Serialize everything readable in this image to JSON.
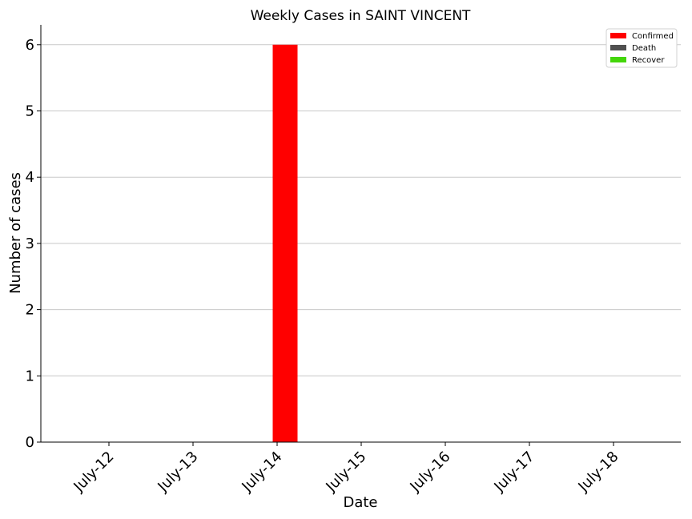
{
  "chart_data": {
    "type": "bar",
    "title": "Weekly Cases in SAINT VINCENT",
    "xlabel": "Date",
    "ylabel": "Number of cases",
    "categories": [
      "July-12",
      "July-13",
      "July-14",
      "July-15",
      "July-16",
      "July-17",
      "July-18"
    ],
    "series": [
      {
        "name": "Confirmed",
        "color": "#ff0000",
        "values": [
          0,
          0,
          6,
          0,
          0,
          0,
          0
        ]
      },
      {
        "name": "Death",
        "color": "#505050",
        "values": [
          0,
          0,
          0,
          0,
          0,
          0,
          0
        ]
      },
      {
        "name": "Recover",
        "color": "#44d60a",
        "values": [
          0,
          0,
          0,
          0,
          0,
          0,
          0
        ]
      }
    ],
    "ylim": [
      0,
      6.3
    ],
    "yticks": [
      "0",
      "1",
      "2",
      "3",
      "4",
      "5",
      "6"
    ],
    "grid": "horizontal",
    "legend": "top-right"
  }
}
